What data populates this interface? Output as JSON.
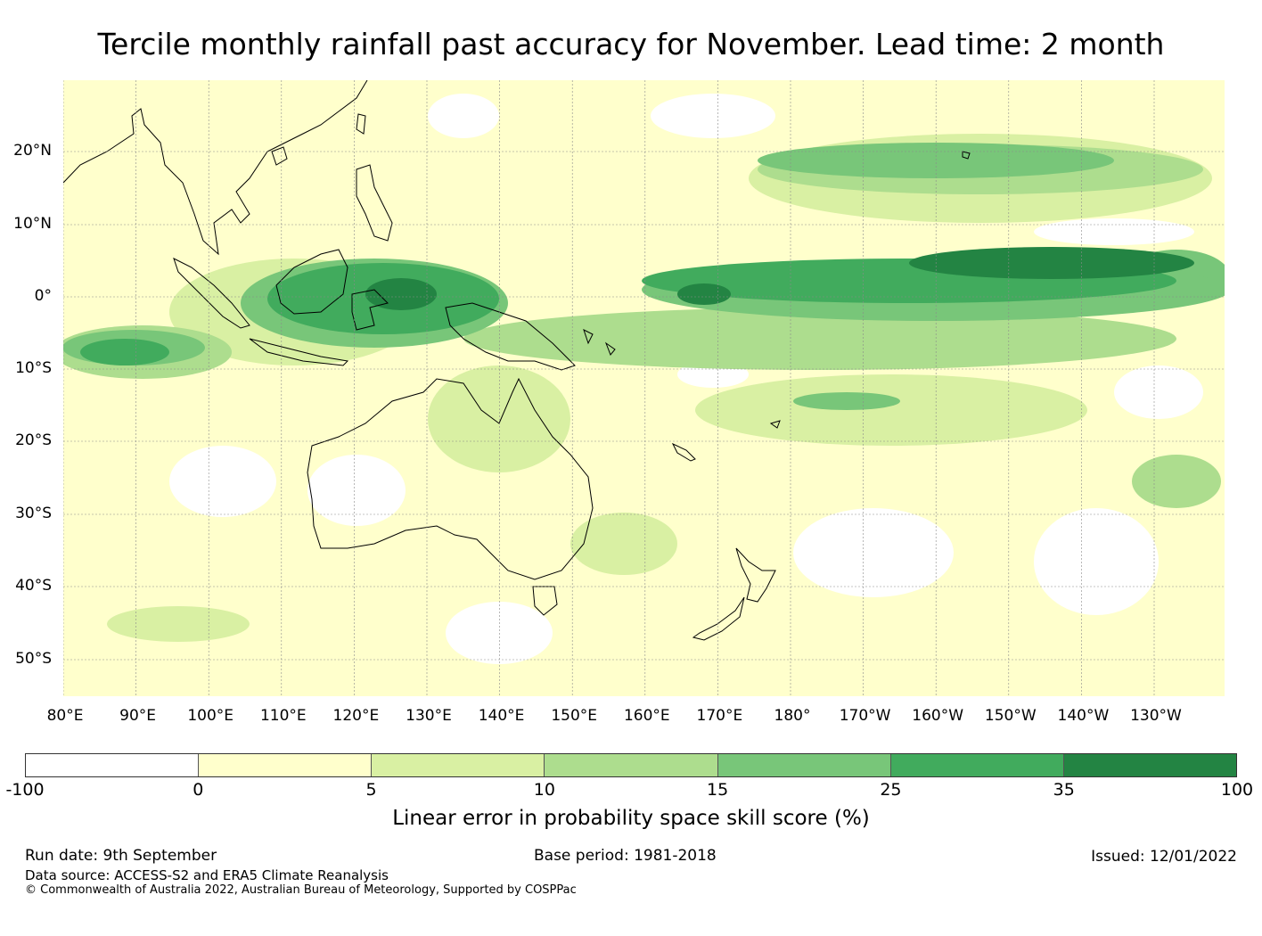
{
  "title": "Tercile monthly rainfall past accuracy for November. Lead time: 2 month",
  "map": {
    "lat_labels": [
      "20°N",
      "10°N",
      "0°",
      "10°S",
      "20°S",
      "30°S",
      "40°S",
      "50°S"
    ],
    "lon_labels": [
      "80°E",
      "90°E",
      "100°E",
      "110°E",
      "120°E",
      "130°E",
      "140°E",
      "150°E",
      "160°E",
      "170°E",
      "180°",
      "170°W",
      "160°W",
      "150°W",
      "140°W",
      "130°W"
    ],
    "regions": [
      "Asia",
      "Philippines",
      "Indonesia",
      "New Guinea",
      "Australia",
      "Tasmania",
      "New Zealand",
      "Hawaii",
      "New Caledonia",
      "Fiji",
      "Solomon Islands"
    ]
  },
  "colorbar": {
    "ticks": [
      "-100",
      "0",
      "5",
      "10",
      "15",
      "25",
      "35",
      "100"
    ],
    "colors": [
      "#ffffff",
      "#ffffcc",
      "#d9f0a3",
      "#addd8e",
      "#78c679",
      "#41ab5d",
      "#238443"
    ],
    "label": "Linear error in probability space skill score (%)"
  },
  "footer": {
    "run_date": "Run date: 9th September",
    "base_period": "Base period: 1981-2018",
    "issued": "Issued: 12/01/2022",
    "data_source": "Data source: ACCESS-S2 and ERA5 Climate Reanalysis",
    "copyright": "© Commonwealth of Australia 2022, Australian Bureau of Meteorology, Supported by COSPPac"
  }
}
